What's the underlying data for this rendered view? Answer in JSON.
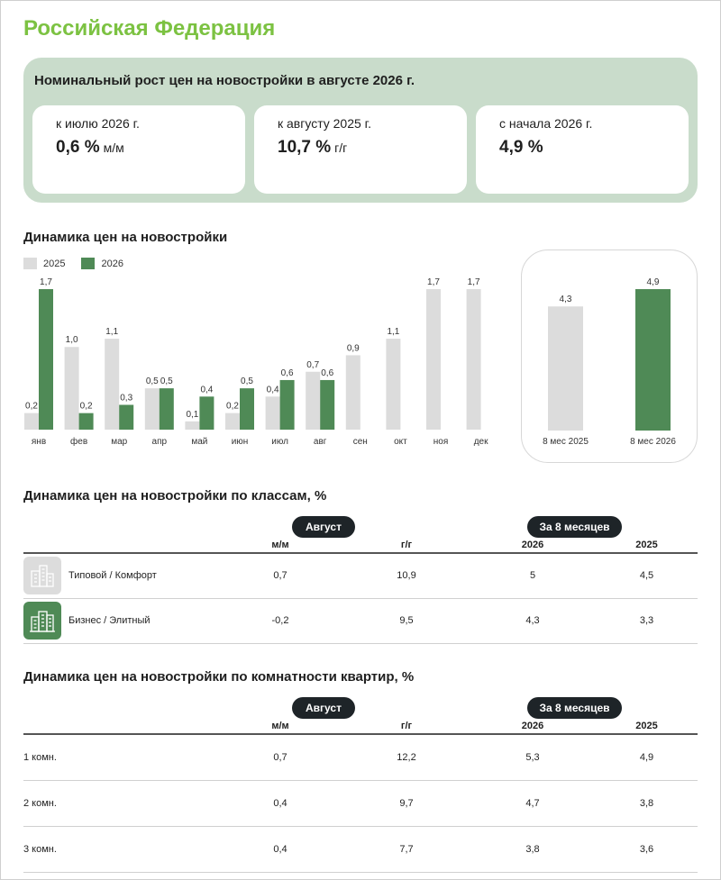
{
  "region": {
    "title": "Российская Федерация"
  },
  "summary": {
    "title": "Номинальный рост цен на новостройки в августе 2026 г.",
    "cards": [
      {
        "label": "к июлю 2026 г.",
        "value": "0,6 %",
        "unit": "м/м"
      },
      {
        "label": "к августу 2025 г.",
        "value": "10,7 %",
        "unit": "г/г"
      },
      {
        "label": "с начала 2026 г.",
        "value": "4,9 %",
        "unit": ""
      }
    ]
  },
  "colors": {
    "accent": "#7cc242",
    "series_2025": "#dcdcdc",
    "series_2026": "#4f8a56",
    "panel": "#c9dccb",
    "pill": "#1e2428"
  },
  "chart_section": {
    "title": "Динамика цен на новостройки"
  },
  "chart_data": [
    {
      "type": "bar",
      "categories": [
        "янв",
        "фев",
        "мар",
        "апр",
        "май",
        "июн",
        "июл",
        "авг",
        "сен",
        "окт",
        "ноя",
        "дек"
      ],
      "series": [
        {
          "name": "2025",
          "values": [
            0.2,
            1.0,
            1.1,
            0.5,
            0.1,
            0.2,
            0.4,
            0.7,
            0.9,
            1.1,
            1.7,
            1.7
          ],
          "labels": [
            "0,2",
            "1,0",
            "1,1",
            "0,5",
            "0,1",
            "0,2",
            "0,4",
            "0,7",
            "0,9",
            "1,1",
            "1,7",
            "1,7"
          ]
        },
        {
          "name": "2026",
          "values": [
            1.7,
            0.2,
            0.3,
            0.5,
            0.4,
            0.5,
            0.6,
            0.6,
            null,
            null,
            null,
            null
          ],
          "labels": [
            "1,7",
            "0,2",
            "0,3",
            "0,5",
            "0,4",
            "0,5",
            "0,6",
            "0,6",
            "",
            "",
            "",
            ""
          ]
        }
      ],
      "legend": "top-left",
      "ylim": [
        0,
        1.7
      ],
      "grid": false
    },
    {
      "type": "bar",
      "categories": [
        "8 мес 2025",
        "8 мес 2026"
      ],
      "values": [
        4.3,
        4.9
      ],
      "labels": [
        "4,3",
        "4,9"
      ],
      "ylim": [
        0,
        4.9
      ],
      "grid": false
    }
  ],
  "class_table": {
    "title": "Динамика цен на новостройки по классам, %",
    "group_august": "Август",
    "group_8m": "За 8 месяцев",
    "headers": [
      "м/м",
      "г/г",
      "2026",
      "2025"
    ],
    "rows": [
      {
        "name": "Типовой / Комфорт",
        "icon": "building-grey-icon",
        "values": [
          "0,7",
          "10,9",
          "5",
          "4,5"
        ]
      },
      {
        "name": "Бизнес / Элитный",
        "icon": "building-green-icon",
        "values": [
          "-0,2",
          "9,5",
          "4,3",
          "3,3"
        ]
      }
    ]
  },
  "rooms_table": {
    "title": "Динамика цен на новостройки по комнатности квартир, %",
    "group_august": "Август",
    "group_8m": "За 8 месяцев",
    "headers": [
      "м/м",
      "г/г",
      "2026",
      "2025"
    ],
    "rows": [
      {
        "name": "1 комн.",
        "values": [
          "0,7",
          "12,2",
          "5,3",
          "4,9"
        ]
      },
      {
        "name": "2 комн.",
        "values": [
          "0,4",
          "9,7",
          "4,7",
          "3,8"
        ]
      },
      {
        "name": "3 комн.",
        "values": [
          "0,4",
          "7,7",
          "3,8",
          "3,6"
        ]
      }
    ]
  }
}
